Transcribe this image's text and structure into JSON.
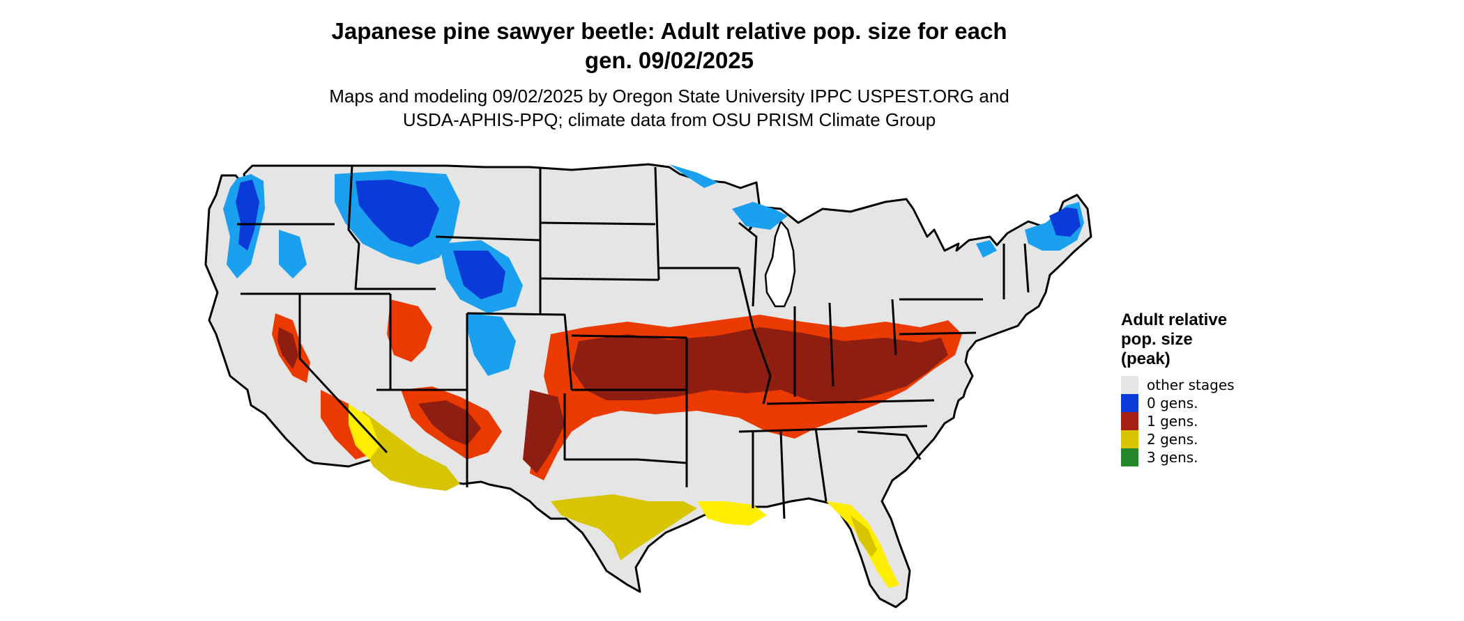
{
  "title_line1": "Japanese pine sawyer beetle: Adult relative pop. size for each",
  "title_line2": "gen. 09/02/2025",
  "subtitle_line1": "Maps and modeling 09/02/2025 by Oregon State University IPPC USPEST.ORG and",
  "subtitle_line2": "USDA-APHIS-PPQ; climate data from OSU PRISM Climate Group",
  "legend": {
    "title_line1": "Adult relative",
    "title_line2": "pop. size",
    "title_line3": "(peak)",
    "items": [
      {
        "label": "other stages",
        "color": "#e5e5e5"
      },
      {
        "label": "0 gens.",
        "color": "#0a3ad8"
      },
      {
        "label": "1 gens.",
        "color": "#a61e14"
      },
      {
        "label": "2 gens.",
        "color": "#d8c400"
      },
      {
        "label": "3 gens.",
        "color": "#22882a"
      }
    ]
  },
  "colors": {
    "other": "#e5e5e5",
    "gen0_dark": "#0a3ad8",
    "gen0_light": "#1aa0ee",
    "gen1_dark": "#8e1d12",
    "gen1_red": "#ea3a00",
    "gen2": "#d8c400",
    "gen2_bright": "#ffee00",
    "border": "#000000"
  }
}
